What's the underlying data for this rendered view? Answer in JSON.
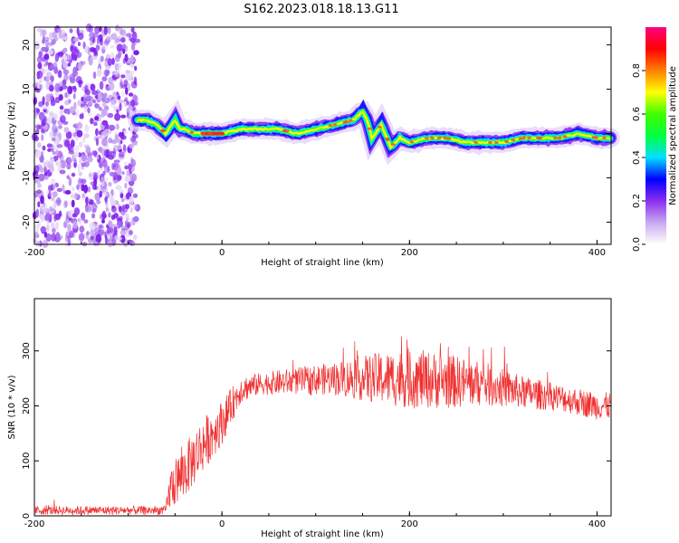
{
  "title": "S162.2023.018.18.13.G11",
  "chart_data": [
    {
      "type": "heatmap",
      "xlabel": "Height of straight line (km)",
      "ylabel": "Frequency (Hz)",
      "xlim": [
        -200,
        415
      ],
      "ylim": [
        -25,
        24
      ],
      "x_ticks": [
        -200,
        0,
        200,
        400
      ],
      "y_ticks": [
        20,
        10,
        0,
        -10,
        -20
      ],
      "noise_region_x": [
        -200,
        -90
      ],
      "signal_track": {
        "x": [
          -90,
          -80,
          -70,
          -60,
          -50,
          -45,
          -40,
          -30,
          -20,
          -10,
          0,
          20,
          40,
          60,
          80,
          100,
          120,
          140,
          150,
          155,
          160,
          170,
          180,
          190,
          200,
          220,
          240,
          260,
          280,
          300,
          320,
          340,
          360,
          380,
          400,
          415
        ],
        "y": [
          3,
          3,
          2,
          0,
          3,
          1,
          1,
          0,
          0,
          0,
          0,
          1,
          1,
          1,
          0,
          1,
          2,
          3,
          5,
          3,
          -1,
          2,
          -3,
          -1,
          -2,
          -1,
          -1,
          -2,
          -2,
          -2,
          -1,
          -1,
          -1,
          0,
          -1,
          -1
        ]
      },
      "colorbar": {
        "label": "Normalized spectral amplitude",
        "ticks": [
          0.0,
          0.2,
          0.4,
          0.6,
          0.8
        ],
        "range": [
          0,
          1
        ],
        "colors": [
          "#ffffff",
          "#c9a8f0",
          "#8b2ff0",
          "#0000ff",
          "#00e0ff",
          "#00ff40",
          "#40ff00",
          "#ffff00",
          "#ff8000",
          "#ff0000",
          "#ff0080"
        ]
      }
    },
    {
      "type": "line",
      "xlabel": "Height of straight line (km)",
      "ylabel": "SNR (10 * v/v)",
      "xlim": [
        -200,
        415
      ],
      "ylim": [
        0,
        395
      ],
      "x_ticks": [
        -200,
        0,
        200,
        400
      ],
      "y_ticks": [
        0,
        100,
        200,
        300
      ],
      "color": "#f03030",
      "envelope": {
        "x": [
          -200,
          -60,
          -55,
          -40,
          -20,
          0,
          20,
          40,
          80,
          120,
          160,
          200,
          240,
          280,
          320,
          360,
          400,
          415
        ],
        "mean": [
          10,
          10,
          50,
          80,
          130,
          170,
          230,
          240,
          245,
          250,
          250,
          250,
          245,
          240,
          225,
          215,
          200,
          200
        ],
        "spread": [
          8,
          8,
          40,
          50,
          50,
          40,
          25,
          20,
          25,
          30,
          45,
          55,
          50,
          40,
          30,
          25,
          25,
          25
        ]
      }
    }
  ]
}
